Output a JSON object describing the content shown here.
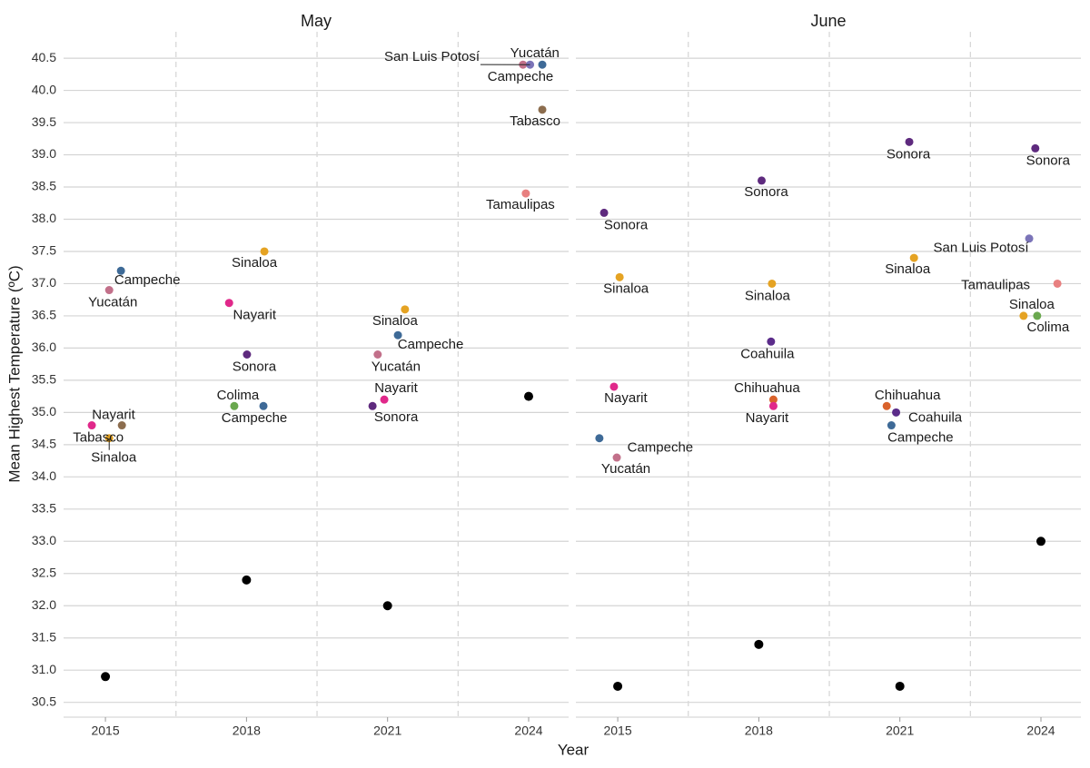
{
  "chart_data": [
    {
      "type": "scatter",
      "title": "May",
      "xlabel": "Year",
      "ylabel": "Mean Highest Temperature (ºC)",
      "xlim": [
        2014.11,
        2024.85
      ],
      "xticks": [
        2015,
        2018,
        2021,
        2024
      ],
      "xgrid_dashed": [
        2016.5,
        2019.5,
        2022.5
      ],
      "ylim": [
        30.27,
        40.91
      ],
      "yticks": [
        30.5,
        {
          "value": 31,
          "label": "31.0"
        },
        31.5,
        {
          "value": 32,
          "label": "32.0"
        },
        32.5,
        {
          "value": 33,
          "label": "33.0"
        },
        33.5,
        {
          "value": 34,
          "label": "34.0"
        },
        34.5,
        {
          "value": 35,
          "label": "35.0"
        },
        35.5,
        {
          "value": 36,
          "label": "36.0"
        },
        36.5,
        {
          "value": 37,
          "label": "37.0"
        },
        37.5,
        {
          "value": 38,
          "label": "38.0"
        },
        38.5,
        {
          "value": 39,
          "label": "39.0"
        },
        39.5,
        {
          "value": 40,
          "label": "40.0"
        },
        40.5
      ],
      "grid": true,
      "series": [
        {
          "color": "#000000",
          "x": [
            2015,
            2018,
            2021,
            2024
          ],
          "values": [
            30.9,
            32.4,
            32.0,
            35.25
          ]
        },
        {
          "name": "Campeche",
          "color": "#3e6a97",
          "x": [
            2015.33,
            2018.36,
            2021.22,
            2024.29
          ],
          "values": [
            37.2,
            35.1,
            36.2,
            40.4
          ]
        },
        {
          "name": "Yucatán",
          "color": "#c2708a",
          "x": [
            2015.08,
            2020.79,
            2023.88
          ],
          "values": [
            36.9,
            35.9,
            40.4
          ]
        },
        {
          "name": "San Luis Potosí",
          "color": "#7b74b8",
          "x": [
            2024.03
          ],
          "values": [
            40.4
          ]
        },
        {
          "name": "Sinaloa",
          "color": "#e5a323",
          "x": [
            2015.08,
            2018.38,
            2021.37
          ],
          "values": [
            34.6,
            37.5,
            36.6
          ]
        },
        {
          "name": "Nayarit",
          "color": "#e0288a",
          "x": [
            2014.71,
            2017.63,
            2020.93
          ],
          "values": [
            34.8,
            36.7,
            35.2
          ]
        },
        {
          "name": "Tabasco",
          "color": "#8c6d4e",
          "x": [
            2015.35,
            2024.29
          ],
          "values": [
            34.8,
            39.7
          ]
        },
        {
          "name": "Sonora",
          "color": "#5e2a7e",
          "x": [
            2018.01,
            2020.68
          ],
          "values": [
            35.9,
            35.1
          ]
        },
        {
          "name": "Colima",
          "color": "#6aa84f",
          "x": [
            2017.74
          ],
          "values": [
            35.1
          ]
        },
        {
          "name": "Tamaulipas",
          "color": "#e88080",
          "x": [
            2023.94
          ],
          "values": [
            38.4
          ]
        }
      ]
    },
    {
      "type": "scatter",
      "title": "June",
      "xlim": [
        2014.11,
        2024.85
      ],
      "xticks": [
        2015,
        2018,
        2021,
        2024
      ],
      "xgrid_dashed": [
        2016.5,
        2019.5,
        2022.5
      ],
      "ylim": [
        30.27,
        40.91
      ],
      "yticks": [
        30.5,
        31,
        31.5,
        32,
        32.5,
        33,
        33.5,
        34,
        34.5,
        35,
        35.5,
        36,
        36.5,
        37,
        37.5,
        38,
        38.5,
        39,
        39.5,
        40,
        40.5
      ],
      "grid": true,
      "series": [
        {
          "color": "#000000",
          "x": [
            2015,
            2018,
            2021,
            2024
          ],
          "values": [
            30.75,
            31.4,
            30.75,
            33.0
          ]
        },
        {
          "name": "Sonora",
          "color": "#5e2a7e",
          "x": [
            2014.71,
            2018.06,
            2021.2,
            2023.88
          ],
          "values": [
            38.1,
            38.6,
            39.2,
            39.1
          ]
        },
        {
          "name": "Sinaloa",
          "color": "#e5a323",
          "x": [
            2015.04,
            2018.28,
            2021.3,
            2023.63
          ],
          "values": [
            37.1,
            37.0,
            37.4,
            36.5
          ]
        },
        {
          "name": "Colima",
          "color": "#6aa84f",
          "x": [
            2023.92
          ],
          "values": [
            36.5
          ]
        },
        {
          "name": "San Luis Potosí",
          "color": "#7b74b8",
          "x": [
            2023.75
          ],
          "values": [
            37.7
          ]
        },
        {
          "name": "Tamaulipas",
          "color": "#e88080",
          "x": [
            2024.35
          ],
          "values": [
            37.0
          ]
        },
        {
          "name": "Coahuila",
          "color": "#5b2c8a",
          "x": [
            2018.26,
            2020.92
          ],
          "values": [
            36.1,
            35.0
          ]
        },
        {
          "name": "Chihuahua",
          "color": "#d9622b",
          "x": [
            2018.31,
            2020.72
          ],
          "values": [
            35.2,
            35.1
          ]
        },
        {
          "name": "Nayarit",
          "color": "#e0288a",
          "x": [
            2014.92,
            2018.31
          ],
          "values": [
            35.4,
            35.1
          ]
        },
        {
          "name": "Campeche",
          "color": "#3e6a97",
          "x": [
            2014.61,
            2020.82
          ],
          "values": [
            34.6,
            34.8
          ]
        },
        {
          "name": "Yucatán",
          "color": "#c2708a",
          "x": [
            2014.98
          ],
          "values": [
            34.3
          ]
        }
      ]
    }
  ]
}
